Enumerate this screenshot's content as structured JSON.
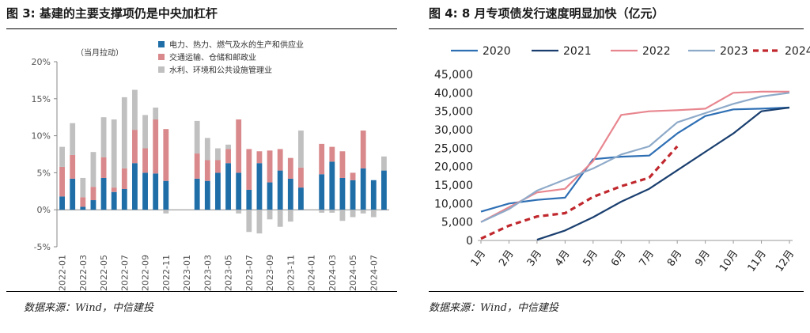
{
  "left": {
    "figure_title": "图 3: 基建的主要支撑项仍是中央加杠杆",
    "source": "数据来源：Wind，中信建投"
  },
  "right": {
    "figure_title": "图 4: 8 月专项债发行速度明显加快（亿元）",
    "source": "数据来源：Wind，中信建投"
  },
  "chart_data": [
    {
      "type": "bar",
      "stacked": true,
      "unit_note": "（当月拉动）",
      "categories": [
        "2022-01",
        "2022-02",
        "2022-03",
        "2022-04",
        "2022-05",
        "2022-06",
        "2022-07",
        "2022-08",
        "2022-09",
        "2022-10",
        "2022-11",
        "2022-12",
        "2023-01",
        "2023-02",
        "2023-03",
        "2023-04",
        "2023-05",
        "2023-06",
        "2023-07",
        "2023-08",
        "2023-09",
        "2023-10",
        "2023-11",
        "2023-12",
        "2024-01",
        "2024-02",
        "2024-03",
        "2024-04",
        "2024-05",
        "2024-06",
        "2024-07",
        "2024-08"
      ],
      "present": [
        true,
        true,
        true,
        true,
        true,
        true,
        true,
        true,
        true,
        true,
        true,
        true,
        false,
        true,
        true,
        true,
        true,
        true,
        true,
        true,
        true,
        true,
        true,
        true,
        false,
        true,
        true,
        true,
        true,
        true,
        true,
        true
      ],
      "tick_labels": [
        "2022-01",
        "2022-03",
        "2022-05",
        "2022-07",
        "2022-09",
        "2022-11",
        "2023-01",
        "2023-03",
        "2023-05",
        "2023-07",
        "2023-09",
        "2023-11",
        "2024-01",
        "2024-03",
        "2024-05",
        "2024-07"
      ],
      "series": [
        {
          "name": "电力、热力、燃气及水的生产和供应业",
          "color": "#1f6ea8",
          "values": [
            1.8,
            4.2,
            0.4,
            1.3,
            4.3,
            2.4,
            2.8,
            6.3,
            5.0,
            4.9,
            3.9,
            0,
            0,
            4.2,
            3.9,
            5.0,
            6.3,
            5.0,
            2.7,
            6.3,
            3.7,
            5.3,
            4.2,
            3.0,
            0,
            4.8,
            6.5,
            4.3,
            4.0,
            5.6,
            4.0,
            5.3
          ]
        },
        {
          "name": "交通运输、仓储和邮政业",
          "color": "#d9898b",
          "values": [
            4.0,
            3.2,
            1.3,
            1.8,
            2.8,
            0.6,
            2.8,
            4.5,
            3.3,
            7.3,
            7.0,
            0,
            0,
            3.4,
            2.8,
            1.7,
            1.9,
            7.2,
            5.5,
            1.6,
            4.3,
            2.9,
            2.8,
            2.7,
            0,
            4.1,
            2.0,
            3.6,
            1.0,
            5.1,
            0.0,
            0.0
          ]
        },
        {
          "name": "水利、环境和公共设施管理业",
          "color": "#c0c0c0",
          "values": [
            2.7,
            4.3,
            2.6,
            4.7,
            5.4,
            9.2,
            9.6,
            5.4,
            4.5,
            1.6,
            -0.5,
            0,
            0,
            4.4,
            3.0,
            1.6,
            0.6,
            -0.5,
            -3.0,
            -3.2,
            -1.3,
            -2.3,
            -1.6,
            5.0,
            0,
            -0.4,
            -0.4,
            -1.5,
            -1.0,
            -0.5,
            -1.0,
            1.9
          ]
        }
      ],
      "ylim": [
        -5,
        20
      ],
      "yticks": [
        "-5%",
        "0%",
        "5%",
        "10%",
        "15%",
        "20%"
      ],
      "ytick_values": [
        -5,
        0,
        5,
        10,
        15,
        20
      ]
    },
    {
      "type": "line",
      "categories": [
        "1月",
        "2月",
        "3月",
        "4月",
        "5月",
        "6月",
        "7月",
        "8月",
        "9月",
        "10月",
        "11月",
        "12月"
      ],
      "series": [
        {
          "name": "2020",
          "color": "#2e6fb4",
          "dashed": false,
          "values": [
            7800,
            10000,
            11000,
            11600,
            22000,
            22700,
            23000,
            29000,
            33700,
            35500,
            35700,
            36000
          ]
        },
        {
          "name": "2021",
          "color": "#1a3f6f",
          "dashed": false,
          "values": [
            null,
            null,
            200,
            2700,
            6300,
            10500,
            14000,
            19000,
            24000,
            29000,
            35000,
            36000
          ]
        },
        {
          "name": "2022",
          "color": "#e8868f",
          "dashed": false,
          "values": [
            5000,
            9000,
            13000,
            14000,
            21500,
            34000,
            35000,
            35300,
            35700,
            40000,
            40300,
            40300
          ]
        },
        {
          "name": "2023",
          "color": "#8eaac9",
          "dashed": false,
          "values": [
            5000,
            8500,
            13500,
            16500,
            19500,
            23300,
            25500,
            32000,
            34500,
            37000,
            39000,
            40000
          ]
        },
        {
          "name": "2024",
          "color": "#c0282e",
          "dashed": true,
          "values": [
            500,
            4000,
            6500,
            7400,
            11800,
            14700,
            17000,
            25500,
            null,
            null,
            null,
            null
          ]
        }
      ],
      "ylim": [
        0,
        45000
      ],
      "yticks": [
        "0",
        "5,000",
        "10,000",
        "15,000",
        "20,000",
        "25,000",
        "30,000",
        "35,000",
        "40,000",
        "45,000"
      ],
      "ytick_values": [
        0,
        5000,
        10000,
        15000,
        20000,
        25000,
        30000,
        35000,
        40000,
        45000
      ]
    }
  ]
}
